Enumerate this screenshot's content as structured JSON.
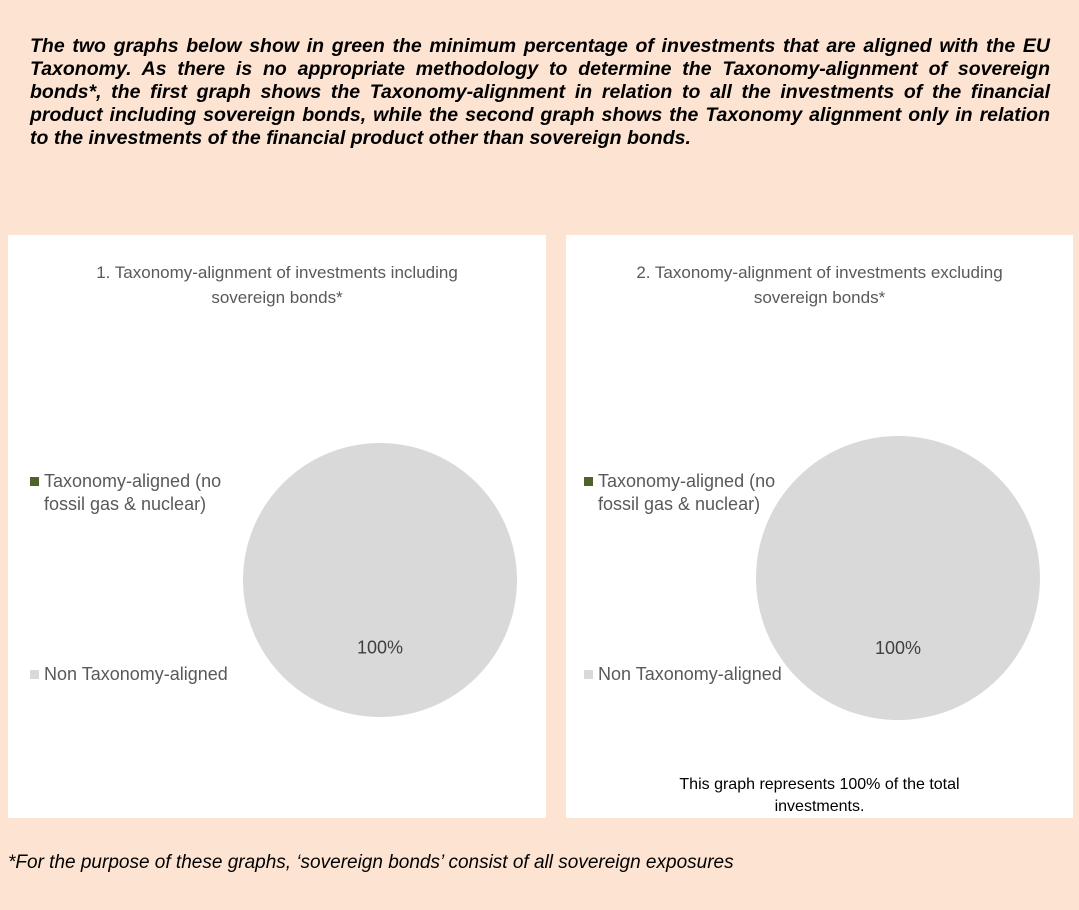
{
  "intro": "The two graphs below show in green the minimum percentage of investments that are aligned with the EU Taxonomy. As there is no appropriate methodology to determine the Taxonomy-alignment of sovereign bonds*, the first graph shows the Taxonomy-alignment in relation to all the investments of the financial product including sovereign bonds, while the second graph shows the Taxonomy alignment only in relation to the investments of the financial product other than sovereign bonds.",
  "chart_data": [
    {
      "type": "pie",
      "title": "1. Taxonomy-alignment of investments including sovereign bonds*",
      "categories": [
        "Taxonomy-aligned (no fossil gas & nuclear)",
        "Non Taxonomy-aligned"
      ],
      "values": [
        0,
        100
      ],
      "value_labels": [
        null,
        "100%"
      ],
      "colors": [
        "#4f6228",
        "#d9d9d9"
      ]
    },
    {
      "type": "pie",
      "title": "2. Taxonomy-alignment of investments excluding sovereign bonds*",
      "categories": [
        "Taxonomy-aligned (no fossil gas & nuclear)",
        "Non Taxonomy-aligned"
      ],
      "values": [
        0,
        100
      ],
      "value_labels": [
        null,
        "100%"
      ],
      "colors": [
        "#4f6228",
        "#d9d9d9"
      ],
      "note": "This graph represents 100% of the total investments."
    }
  ],
  "footnote": "*For the purpose of these graphs, ‘sovereign bonds’ consist of all sovereign exposures"
}
